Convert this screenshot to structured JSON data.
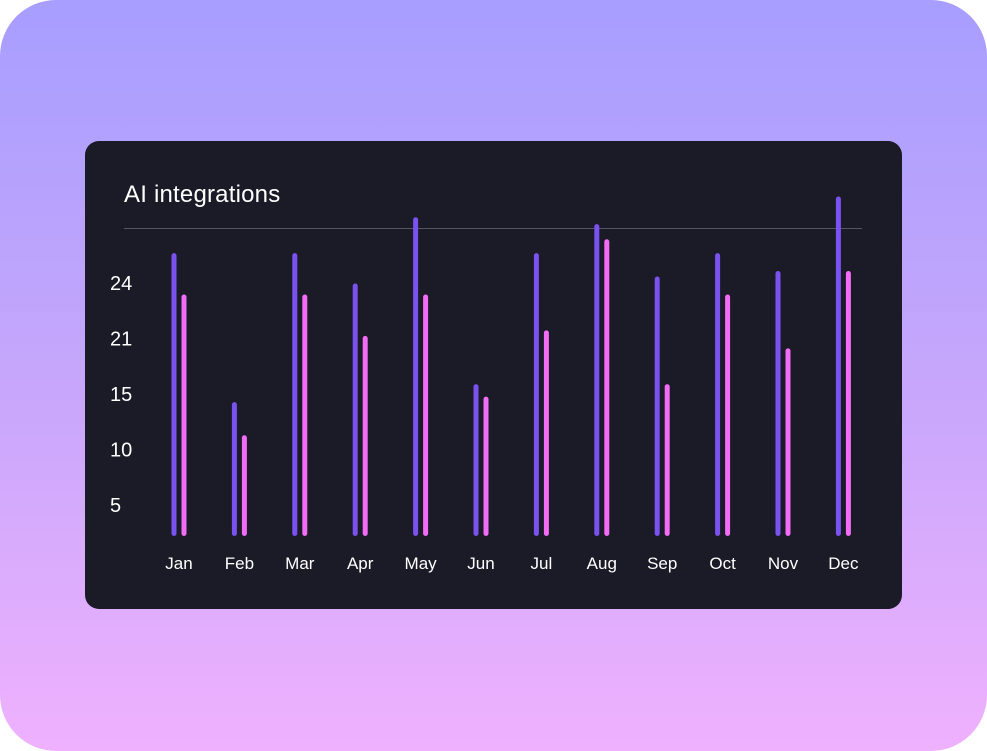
{
  "chart_data": {
    "type": "bar",
    "title": "AI integrations",
    "xlabel": "",
    "ylabel": "",
    "categories": [
      "Jan",
      "Feb",
      "Mar",
      "Apr",
      "May",
      "Jun",
      "Jul",
      "Aug",
      "Sep",
      "Oct",
      "Nov",
      "Dec"
    ],
    "yticks": [
      24,
      21,
      15,
      10,
      5
    ],
    "series": [
      {
        "values": [
          20.5,
          9.7,
          20.5,
          18.3,
          23.1,
          11.0,
          20.5,
          22.6,
          18.8,
          20.5,
          19.2,
          24.6
        ]
      },
      {
        "values": [
          17.5,
          7.3,
          17.5,
          14.5,
          17.5,
          10.1,
          14.9,
          21.5,
          11.0,
          17.5,
          13.6,
          19.2
        ]
      }
    ],
    "colors": [
      "#7a52f0",
      "#f26cf5"
    ],
    "grid": false,
    "legend": "none"
  }
}
